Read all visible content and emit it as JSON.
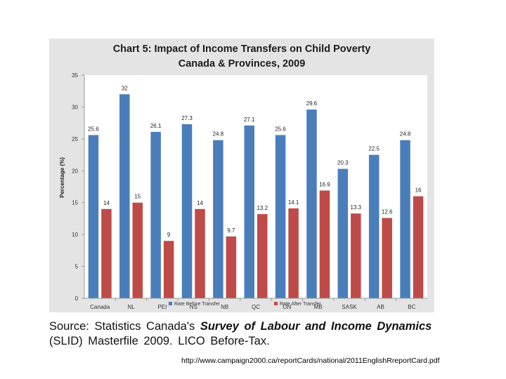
{
  "chart_data": {
    "type": "bar",
    "title": "Chart 5: Impact of Income Transfers on Child Poverty",
    "subtitle": "Canada & Provinces, 2009",
    "xlabel": "",
    "ylabel": "Percentage (%)",
    "ylim": [
      0,
      35
    ],
    "yticks": [
      0,
      5,
      10,
      15,
      20,
      25,
      30,
      35
    ],
    "categories": [
      "Canada",
      "NL",
      "PEI",
      "NS",
      "NB",
      "QC",
      "ON",
      "MB",
      "SASK",
      "AB",
      "BC"
    ],
    "series": [
      {
        "name": "Rate Before Transfer",
        "color": "#4a7ebb",
        "values": [
          25.6,
          32,
          26.1,
          27.3,
          24.8,
          27.1,
          25.6,
          29.6,
          20.3,
          22.5,
          24.8
        ],
        "labels": [
          "25.6",
          "32",
          "26.1",
          "27.3",
          "24.8",
          "27.1",
          "25.6",
          "29.6",
          "20.3",
          "22.5",
          "24.8"
        ]
      },
      {
        "name": "Rate After Transfer",
        "color": "#be4b48",
        "values": [
          14,
          15,
          9,
          14,
          9.7,
          13.2,
          14.1,
          16.9,
          13.3,
          12.6,
          16
        ],
        "labels": [
          "14",
          "15",
          "9",
          "14",
          "9.7",
          "13.2",
          "14.1",
          "16.9",
          "13.3",
          "12.6",
          "16"
        ]
      }
    ],
    "grid": false,
    "legend": "bottom"
  },
  "source": {
    "prefix": "Source:  Statistics  Canada's ",
    "survey": "Survey  of  Labour  and  Income  Dynamics",
    "suffix": " (SLID) Masterfile 2009. LICO Before-Tax."
  },
  "url": "http://www.campaign2000.ca/reportCards/national/2011EnglishRreportCard.pdf"
}
